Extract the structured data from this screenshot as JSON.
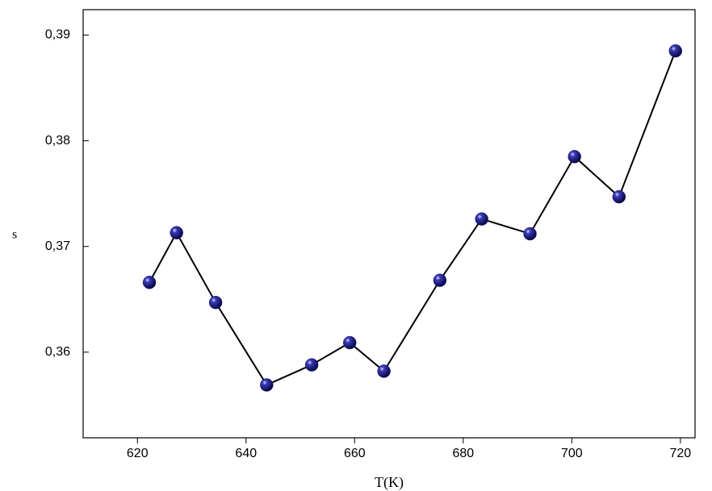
{
  "chart_data": {
    "type": "line",
    "x_label": "T(K)",
    "y_label": "s",
    "series": [
      {
        "name": "s",
        "color": "#1a1a8c",
        "x": [
          622.2,
          627.2,
          634.4,
          643.8,
          652.1,
          659.1,
          665.4,
          675.7,
          683.4,
          692.3,
          700.5,
          708.7,
          719.1
        ],
        "values": [
          0.3666,
          0.3713,
          0.3647,
          0.3569,
          0.3588,
          0.3609,
          0.3582,
          0.3668,
          0.3726,
          0.3712,
          0.3785,
          0.3747,
          0.3885
        ]
      }
    ],
    "xlim": [
      610,
      722.7
    ],
    "xticks": [
      620,
      640,
      660,
      680,
      700,
      720
    ],
    "ylim": [
      0.3519,
      0.3924
    ],
    "yticks": [
      {
        "value": 0.36,
        "label": "0,36"
      },
      {
        "value": 0.37,
        "label": "0,37"
      },
      {
        "value": 0.38,
        "label": "0,38"
      },
      {
        "value": 0.39,
        "label": "0,39"
      }
    ]
  }
}
